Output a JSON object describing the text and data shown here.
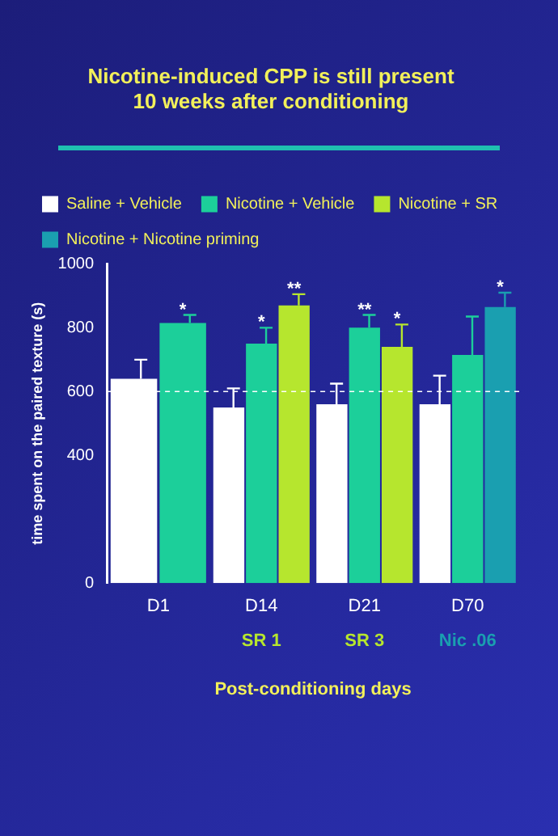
{
  "chart_data": {
    "type": "bar",
    "title": "Nicotine-induced CPP is still present 10 weeks after conditioning",
    "xlabel": "Post-conditioning days",
    "ylabel": "time spent on the paired texture (s)",
    "categories": [
      "D1",
      "D14",
      "D21",
      "D70"
    ],
    "series": [
      {
        "name": "Saline + Vehicle",
        "color": "#ffffff",
        "values": [
          640,
          550,
          560,
          560
        ],
        "errors": [
          [
            640,
            700
          ],
          [
            550,
            610
          ],
          [
            560,
            625
          ],
          [
            560,
            650
          ]
        ]
      },
      {
        "name": "Nicotine + Vehicle",
        "color": "#1ccf9a",
        "values": [
          815,
          750,
          800,
          715
        ],
        "errors": [
          [
            815,
            840
          ],
          [
            750,
            800
          ],
          [
            800,
            840
          ],
          [
            715,
            835
          ]
        ],
        "value_labels": [
          "*",
          "*",
          "**",
          null
        ]
      },
      {
        "name": "Nicotine + SR",
        "color": "#b6e62e",
        "values": [
          null,
          870,
          740,
          null
        ],
        "errors": [
          null,
          [
            870,
            905
          ],
          [
            740,
            810
          ],
          null
        ],
        "value_labels": [
          null,
          "**",
          "*",
          null
        ]
      },
      {
        "name": "Nicotine + Nicotine priming",
        "color": "#1a9fb0",
        "values": [
          null,
          null,
          null,
          865
        ],
        "errors": [
          null,
          null,
          null,
          [
            865,
            910
          ]
        ],
        "value_labels": [
          null,
          null,
          null,
          "*"
        ]
      }
    ],
    "ylim": [
      0,
      1000
    ],
    "yticks": [
      0,
      400,
      600,
      800,
      1000
    ],
    "grid": false,
    "legend": "top",
    "ref_lines": [
      {
        "axis": "y",
        "value": 600,
        "line_style": "dashed",
        "color": "#ffffff"
      }
    ],
    "annotations": [
      "SR 1",
      "SR 3",
      "Nic .06"
    ]
  }
}
